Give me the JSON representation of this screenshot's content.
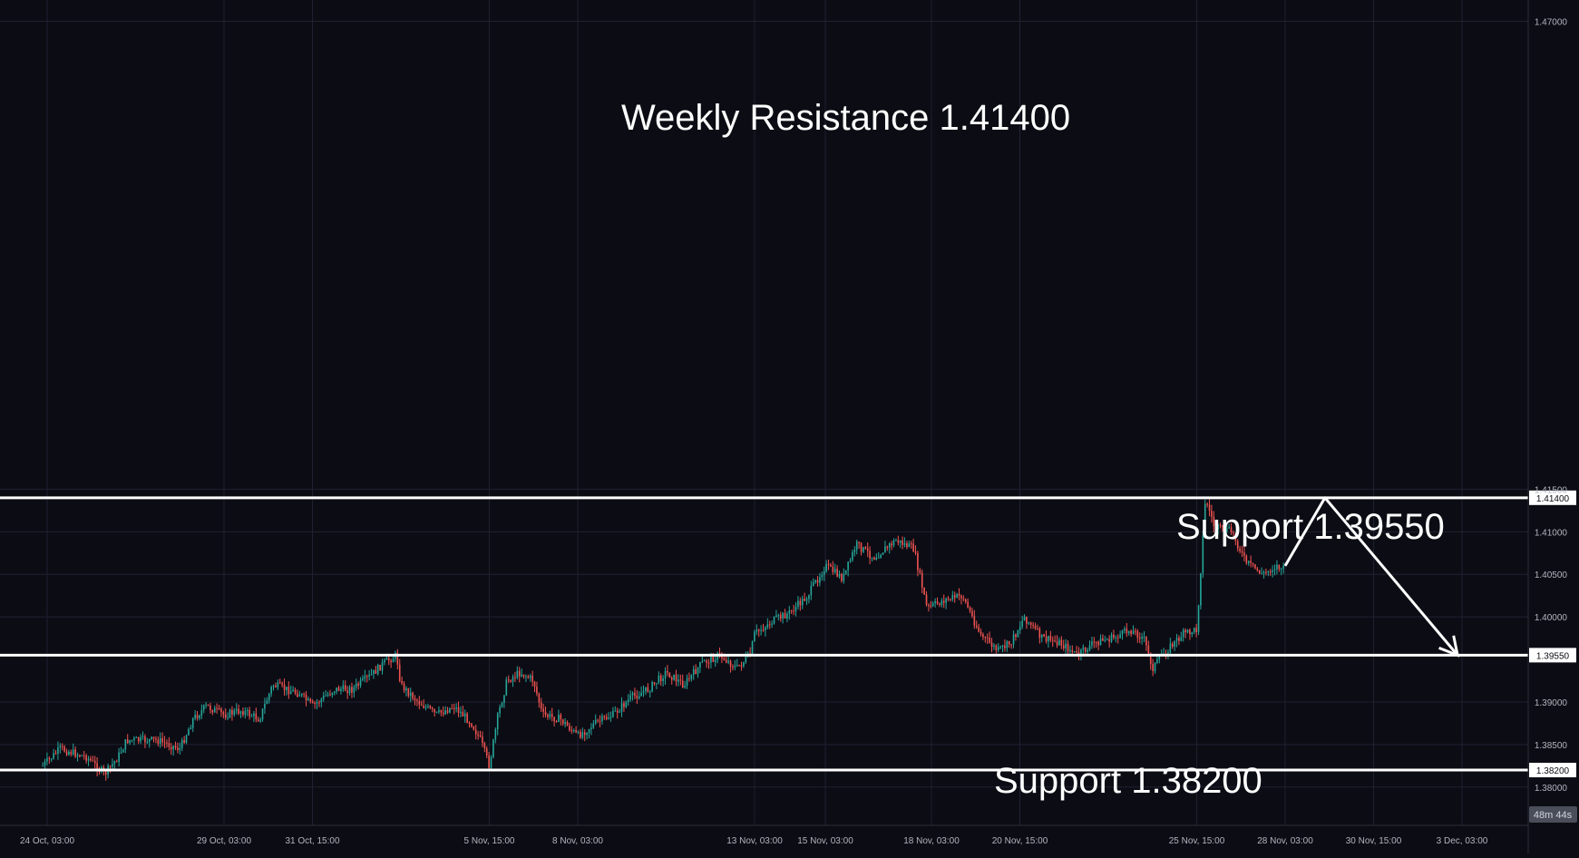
{
  "colors": {
    "background": "#0c0c14",
    "grid": "#1e2130",
    "axis_text": "#b2b5be",
    "up_candle": "#26a69a",
    "down_candle": "#ef5350",
    "level_line": "#ffffff",
    "annotation_text": "#ffffff",
    "countdown_bg": "#4a4e5a"
  },
  "countdown": "48m 44s",
  "annotations": [
    {
      "id": "weekly-resistance",
      "text": "Weekly Resistance 1.41400",
      "price": 1.414
    },
    {
      "id": "support-1",
      "text": "Support 1.39550",
      "price": 1.3955
    },
    {
      "id": "support-2",
      "text": "Support 1.38200",
      "price": 1.382
    }
  ],
  "chart_data": {
    "type": "candlestick",
    "instrument_scale": "price",
    "ylim": [
      1.3755,
      1.4725
    ],
    "y_ticks": [
      "1.47000",
      "1.41500",
      "1.41000",
      "1.40500",
      "1.40000",
      "1.39000",
      "1.38500",
      "1.38000"
    ],
    "x_ticks": [
      "24 Oct, 03:00",
      "29 Oct, 03:00",
      "31 Oct, 15:00",
      "5 Nov, 15:00",
      "8 Nov, 03:00",
      "13 Nov, 03:00",
      "15 Nov, 03:00",
      "18 Nov, 03:00",
      "20 Nov, 15:00",
      "25 Nov, 15:00",
      "28 Nov, 03:00",
      "30 Nov, 15:00",
      "3 Dec, 03:00"
    ],
    "horizontal_levels": [
      {
        "price": 1.414,
        "label": "1.41400"
      },
      {
        "price": 1.3955,
        "label": "1.39550"
      },
      {
        "price": 1.382,
        "label": "1.38200"
      }
    ],
    "close_path": [
      {
        "date": "24 Oct, 00:00",
        "price": 1.3825
      },
      {
        "date": "24 Oct, 12:00",
        "price": 1.3845
      },
      {
        "date": "25 Oct, 06:00",
        "price": 1.3835
      },
      {
        "date": "25 Oct, 18:00",
        "price": 1.3815
      },
      {
        "date": "26 Oct, 03:00",
        "price": 1.3835
      },
      {
        "date": "26 Oct, 09:00",
        "price": 1.3855
      },
      {
        "date": "27 Oct, 06:00",
        "price": 1.3855
      },
      {
        "date": "27 Oct, 21:00",
        "price": 1.3845
      },
      {
        "date": "28 Oct, 06:00",
        "price": 1.388
      },
      {
        "date": "28 Oct, 15:00",
        "price": 1.3895
      },
      {
        "date": "29 Oct, 03:00",
        "price": 1.3885
      },
      {
        "date": "29 Oct, 15:00",
        "price": 1.389
      },
      {
        "date": "30 Oct, 03:00",
        "price": 1.388
      },
      {
        "date": "30 Oct, 12:00",
        "price": 1.392
      },
      {
        "date": "30 Oct, 21:00",
        "price": 1.3915
      },
      {
        "date": "31 Oct, 06:00",
        "price": 1.391
      },
      {
        "date": "31 Oct, 15:00",
        "price": 1.3895
      },
      {
        "date": "1 Nov, 06:00",
        "price": 1.3915
      },
      {
        "date": "1 Nov, 18:00",
        "price": 1.3915
      },
      {
        "date": "2 Nov, 06:00",
        "price": 1.393
      },
      {
        "date": "2 Nov, 15:00",
        "price": 1.3945
      },
      {
        "date": "3 Nov, 00:00",
        "price": 1.3955
      },
      {
        "date": "3 Nov, 03:00",
        "price": 1.392
      },
      {
        "date": "3 Nov, 15:00",
        "price": 1.39
      },
      {
        "date": "4 Nov, 03:00",
        "price": 1.3885
      },
      {
        "date": "4 Nov, 15:00",
        "price": 1.3895
      },
      {
        "date": "5 Nov, 03:00",
        "price": 1.3875
      },
      {
        "date": "5 Nov, 09:00",
        "price": 1.3855
      },
      {
        "date": "5 Nov, 15:00",
        "price": 1.3825
      },
      {
        "date": "5 Nov, 21:00",
        "price": 1.3885
      },
      {
        "date": "6 Nov, 03:00",
        "price": 1.3925
      },
      {
        "date": "6 Nov, 12:00",
        "price": 1.3935
      },
      {
        "date": "6 Nov, 21:00",
        "price": 1.3925
      },
      {
        "date": "7 Nov, 03:00",
        "price": 1.3885
      },
      {
        "date": "7 Nov, 15:00",
        "price": 1.388
      },
      {
        "date": "8 Nov, 03:00",
        "price": 1.386
      },
      {
        "date": "8 Nov, 15:00",
        "price": 1.3875
      },
      {
        "date": "9 Nov, 03:00",
        "price": 1.3885
      },
      {
        "date": "9 Nov, 15:00",
        "price": 1.3905
      },
      {
        "date": "10 Nov, 03:00",
        "price": 1.3915
      },
      {
        "date": "10 Nov, 15:00",
        "price": 1.3935
      },
      {
        "date": "11 Nov, 03:00",
        "price": 1.392
      },
      {
        "date": "11 Nov, 15:00",
        "price": 1.3945
      },
      {
        "date": "12 Nov, 03:00",
        "price": 1.3955
      },
      {
        "date": "12 Nov, 15:00",
        "price": 1.394
      },
      {
        "date": "13 Nov, 00:00",
        "price": 1.3955
      },
      {
        "date": "13 Nov, 03:00",
        "price": 1.398
      },
      {
        "date": "13 Nov, 15:00",
        "price": 1.3995
      },
      {
        "date": "14 Nov, 03:00",
        "price": 1.4005
      },
      {
        "date": "14 Nov, 15:00",
        "price": 1.4025
      },
      {
        "date": "15 Nov, 03:00",
        "price": 1.406
      },
      {
        "date": "15 Nov, 15:00",
        "price": 1.4045
      },
      {
        "date": "16 Nov, 00:00",
        "price": 1.4085
      },
      {
        "date": "16 Nov, 12:00",
        "price": 1.407
      },
      {
        "date": "17 Nov, 03:00",
        "price": 1.409
      },
      {
        "date": "17 Nov, 15:00",
        "price": 1.408
      },
      {
        "date": "18 Nov, 00:00",
        "price": 1.401
      },
      {
        "date": "18 Nov, 12:00",
        "price": 1.402
      },
      {
        "date": "19 Nov, 00:00",
        "price": 1.4025
      },
      {
        "date": "19 Nov, 12:00",
        "price": 1.398
      },
      {
        "date": "20 Nov, 00:00",
        "price": 1.396
      },
      {
        "date": "20 Nov, 09:00",
        "price": 1.397
      },
      {
        "date": "20 Nov, 18:00",
        "price": 1.4
      },
      {
        "date": "21 Nov, 06:00",
        "price": 1.3975
      },
      {
        "date": "21 Nov, 18:00",
        "price": 1.397
      },
      {
        "date": "22 Nov, 06:00",
        "price": 1.3955
      },
      {
        "date": "22 Nov, 18:00",
        "price": 1.397
      },
      {
        "date": "23 Nov, 06:00",
        "price": 1.3975
      },
      {
        "date": "23 Nov, 18:00",
        "price": 1.3985
      },
      {
        "date": "24 Nov, 03:00",
        "price": 1.3975
      },
      {
        "date": "24 Nov, 09:00",
        "price": 1.394
      },
      {
        "date": "24 Nov, 18:00",
        "price": 1.396
      },
      {
        "date": "25 Nov, 06:00",
        "price": 1.398
      },
      {
        "date": "25 Nov, 15:00",
        "price": 1.3985
      },
      {
        "date": "25 Nov, 21:00",
        "price": 1.414
      },
      {
        "date": "26 Nov, 03:00",
        "price": 1.4105
      },
      {
        "date": "26 Nov, 15:00",
        "price": 1.41
      },
      {
        "date": "27 Nov, 00:00",
        "price": 1.4065
      },
      {
        "date": "27 Nov, 12:00",
        "price": 1.405
      },
      {
        "date": "27 Nov, 21:00",
        "price": 1.406
      },
      {
        "date": "28 Nov, 03:00",
        "price": 1.4055
      }
    ],
    "projection_path": [
      {
        "date": "28 Nov, 03:00",
        "price": 1.406
      },
      {
        "date": "29 Nov, 06:00",
        "price": 1.414
      },
      {
        "date": "3 Dec, 00:00",
        "price": 1.3955
      }
    ]
  }
}
